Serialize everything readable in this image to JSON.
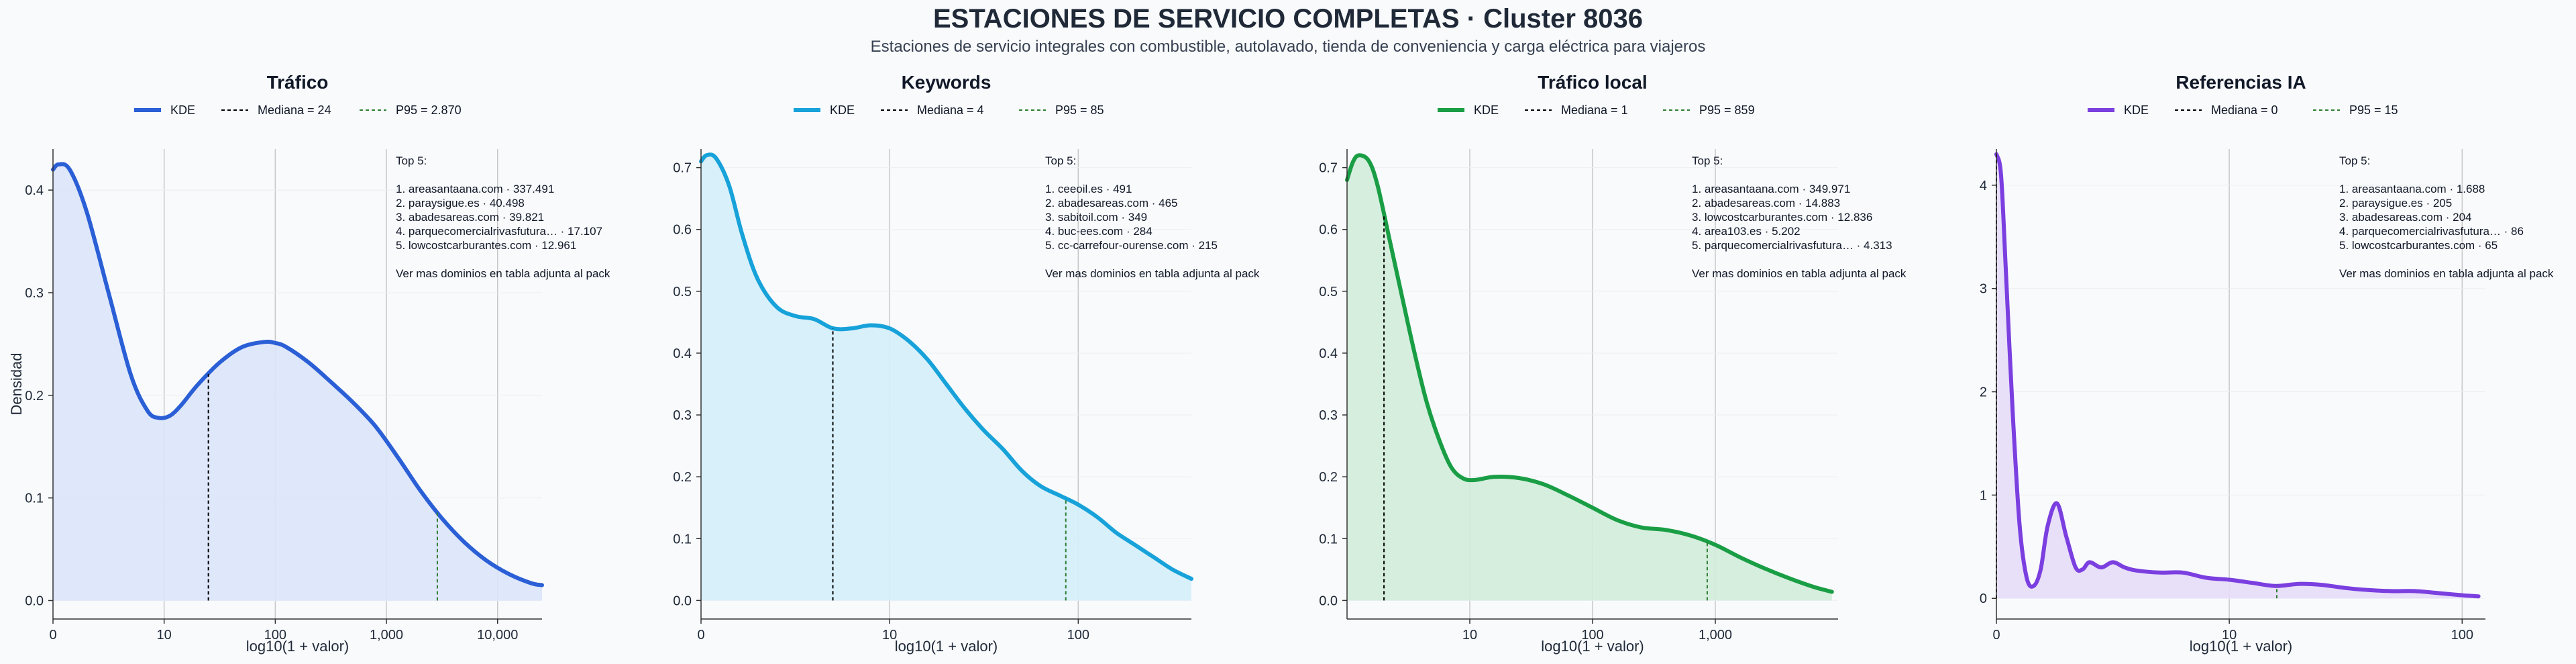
{
  "title": "ESTACIONES DE SERVICIO COMPLETAS · Cluster 8036",
  "subtitle": "Estaciones de servicio integrales con combustible, autolavado, tienda de conveniencia y carga eléctrica para viajeros",
  "colors": {
    "background": "#f8fafc",
    "grid": "#c8c8c8",
    "median": "#000000",
    "p95": "#2e7d32"
  },
  "chart_data": [
    {
      "type": "area",
      "title": "Tráfico",
      "color": "#2a5fd6",
      "fill": "#dbe4fa",
      "legend": {
        "kde": "KDE",
        "median": "Mediana = 24",
        "p95": "P95 = 2.870"
      },
      "xlabel": "log10(1 + valor)",
      "ylabel": "Densidad",
      "x_scale": "log10(1+x)",
      "xlim": [
        0,
        4.4
      ],
      "ylim": [
        -0.018,
        0.44
      ],
      "xticks": [
        0,
        1,
        2,
        3,
        4
      ],
      "xtick_labels": [
        "0",
        "10",
        "100",
        "1,000",
        "10,000"
      ],
      "yticks": [
        0,
        0.1,
        0.2,
        0.3,
        0.4
      ],
      "ytick_labels": [
        "0.0",
        "0.1",
        "0.2",
        "0.3",
        "0.4"
      ],
      "median_x": 1.398,
      "p95_x": 3.458,
      "kde": {
        "x": [
          0,
          0.05,
          0.15,
          0.3,
          0.5,
          0.7,
          0.85,
          0.95,
          1.05,
          1.15,
          1.3,
          1.5,
          1.7,
          1.9,
          2.0,
          2.1,
          2.3,
          2.5,
          2.7,
          2.9,
          3.1,
          3.3,
          3.5,
          3.7,
          3.9,
          4.1,
          4.3,
          4.4
        ],
        "y": [
          0.42,
          0.425,
          0.42,
          0.38,
          0.3,
          0.22,
          0.185,
          0.178,
          0.18,
          0.19,
          0.21,
          0.232,
          0.247,
          0.252,
          0.251,
          0.247,
          0.232,
          0.213,
          0.193,
          0.17,
          0.14,
          0.108,
          0.08,
          0.057,
          0.039,
          0.026,
          0.017,
          0.015
        ]
      },
      "annotation": [
        "Top 5:",
        "",
        "1. areasantaana.com · 337.491",
        "2. paraysigue.es · 40.498",
        "3. abadesareas.com · 39.821",
        "4. parquecomercialrivasfutura… · 17.107",
        "5. lowcostcarburantes.com · 12.961",
        "",
        "Ver mas dominios en tabla adjunta al pack"
      ]
    },
    {
      "type": "area",
      "title": "Keywords",
      "color": "#17a2d9",
      "fill": "#d4eef9",
      "legend": {
        "kde": "KDE",
        "median": "Mediana = 4",
        "p95": "P95 = 85"
      },
      "xlabel": "log10(1 + valor)",
      "ylabel": "",
      "x_scale": "log10(1+x)",
      "xlim": [
        0,
        2.6
      ],
      "ylim": [
        -0.03,
        0.73
      ],
      "xticks": [
        0,
        1,
        2
      ],
      "xtick_labels": [
        "0",
        "10",
        "100"
      ],
      "yticks": [
        0,
        0.1,
        0.2,
        0.3,
        0.4,
        0.5,
        0.6,
        0.7
      ],
      "ytick_labels": [
        "0.0",
        "0.1",
        "0.2",
        "0.3",
        "0.4",
        "0.5",
        "0.6",
        "0.7"
      ],
      "median_x": 0.699,
      "p95_x": 1.934,
      "kde": {
        "x": [
          0,
          0.03,
          0.08,
          0.15,
          0.22,
          0.3,
          0.4,
          0.5,
          0.6,
          0.7,
          0.8,
          0.9,
          1.0,
          1.1,
          1.2,
          1.3,
          1.4,
          1.5,
          1.6,
          1.7,
          1.8,
          1.9,
          2.0,
          2.1,
          2.2,
          2.3,
          2.4,
          2.5,
          2.6
        ],
        "y": [
          0.71,
          0.72,
          0.715,
          0.67,
          0.59,
          0.52,
          0.475,
          0.46,
          0.455,
          0.44,
          0.44,
          0.445,
          0.44,
          0.42,
          0.39,
          0.35,
          0.31,
          0.275,
          0.245,
          0.21,
          0.185,
          0.17,
          0.155,
          0.135,
          0.11,
          0.09,
          0.07,
          0.05,
          0.035
        ]
      },
      "annotation": [
        "Top 5:",
        "",
        "1. ceeoil.es · 491",
        "2. abadesareas.com · 465",
        "3. sabitoil.com · 349",
        "4. buc-ees.com · 284",
        "5. cc-carrefour-ourense.com · 215",
        "",
        "Ver mas dominios en tabla adjunta al pack"
      ]
    },
    {
      "type": "area",
      "title": "Tráfico local",
      "color": "#1a9e45",
      "fill": "#d2ecda",
      "legend": {
        "kde": "KDE",
        "median": "Mediana = 1",
        "p95": "P95 = 859"
      },
      "xlabel": "log10(1 + valor)",
      "ylabel": "",
      "x_scale": "log10(1+x)",
      "xlim": [
        0,
        4.0
      ],
      "ylim": [
        -0.03,
        0.73
      ],
      "xticks": [
        1,
        2,
        3
      ],
      "xtick_labels": [
        "10",
        "100",
        "1,000"
      ],
      "yticks": [
        0,
        0.1,
        0.2,
        0.3,
        0.4,
        0.5,
        0.6,
        0.7
      ],
      "ytick_labels": [
        "0.0",
        "0.1",
        "0.2",
        "0.3",
        "0.4",
        "0.5",
        "0.6",
        "0.7"
      ],
      "median_x": 0.301,
      "p95_x": 2.934,
      "kde": {
        "x": [
          0,
          0.05,
          0.1,
          0.18,
          0.25,
          0.35,
          0.45,
          0.55,
          0.65,
          0.75,
          0.85,
          0.95,
          1.05,
          1.2,
          1.4,
          1.6,
          1.8,
          2.0,
          2.2,
          2.4,
          2.6,
          2.8,
          3.0,
          3.2,
          3.4,
          3.6,
          3.8,
          3.95
        ],
        "y": [
          0.68,
          0.71,
          0.72,
          0.71,
          0.67,
          0.58,
          0.49,
          0.4,
          0.32,
          0.26,
          0.215,
          0.197,
          0.195,
          0.2,
          0.198,
          0.188,
          0.17,
          0.15,
          0.13,
          0.118,
          0.114,
          0.105,
          0.09,
          0.07,
          0.052,
          0.036,
          0.022,
          0.014
        ]
      },
      "annotation": [
        "Top 5:",
        "",
        "1. areasantaana.com · 349.971",
        "2. abadesareas.com · 14.883",
        "3. lowcostcarburantes.com · 12.836",
        "4. area103.es · 5.202",
        "5. parquecomercialrivasfutura… · 4.313",
        "",
        "Ver mas dominios en tabla adjunta al pack"
      ]
    },
    {
      "type": "area",
      "title": "Referencias IA",
      "color": "#7b3fe0",
      "fill": "#e6dcf8",
      "legend": {
        "kde": "KDE",
        "median": "Mediana = 0",
        "p95": "P95 = 15"
      },
      "xlabel": "log10(1 + valor)",
      "ylabel": "",
      "x_scale": "log10(1+x)",
      "xlim": [
        0,
        2.1
      ],
      "ylim": [
        -0.2,
        4.35
      ],
      "xticks": [
        0,
        1,
        2
      ],
      "xtick_labels": [
        "0",
        "10",
        "100"
      ],
      "yticks": [
        0,
        1,
        2,
        3,
        4
      ],
      "ytick_labels": [
        "0",
        "1",
        "2",
        "3",
        "4"
      ],
      "median_x": 0,
      "p95_x": 1.204,
      "kde": {
        "x": [
          0,
          0.02,
          0.04,
          0.07,
          0.1,
          0.13,
          0.16,
          0.19,
          0.22,
          0.26,
          0.3,
          0.34,
          0.37,
          0.4,
          0.45,
          0.5,
          0.55,
          0.6,
          0.7,
          0.8,
          0.9,
          1.0,
          1.1,
          1.2,
          1.3,
          1.4,
          1.5,
          1.6,
          1.7,
          1.8,
          1.9,
          2.0,
          2.07
        ],
        "y": [
          4.3,
          4.1,
          3.2,
          1.8,
          0.7,
          0.2,
          0.12,
          0.28,
          0.7,
          0.92,
          0.6,
          0.3,
          0.28,
          0.35,
          0.3,
          0.35,
          0.3,
          0.27,
          0.25,
          0.25,
          0.2,
          0.18,
          0.15,
          0.12,
          0.14,
          0.13,
          0.1,
          0.08,
          0.07,
          0.07,
          0.05,
          0.03,
          0.02
        ]
      },
      "annotation": [
        "Top 5:",
        "",
        "1. areasantaana.com · 1.688",
        "2. paraysigue.es · 205",
        "3. abadesareas.com · 204",
        "4. parquecomercialrivasfutura… · 86",
        "5. lowcostcarburantes.com · 65",
        "",
        "Ver mas dominios en tabla adjunta al pack"
      ]
    }
  ]
}
